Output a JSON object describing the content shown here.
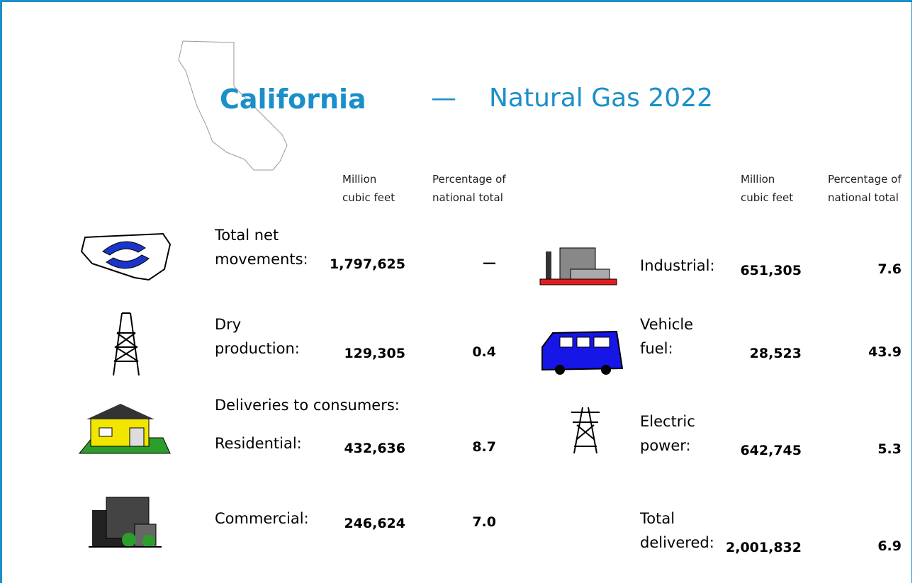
{
  "header": {
    "state": "California",
    "dash": "—",
    "title": "Natural Gas 2022"
  },
  "columns": {
    "left": {
      "volume": [
        "Million",
        "cubic feet"
      ],
      "share": [
        "Percentage of",
        "national total"
      ]
    },
    "right": {
      "volume": [
        "Million",
        "cubic feet"
      ],
      "share": [
        "Percentage of",
        "national total"
      ]
    }
  },
  "left_rows": [
    {
      "label": [
        "Total net",
        "movements:"
      ],
      "volume": "1,797,625",
      "share": "—"
    },
    {
      "label": [
        "Dry",
        "production:"
      ],
      "volume": "129,305",
      "share": "0.4"
    },
    {
      "section": "Deliveries to consumers:"
    },
    {
      "label": [
        "Residential:"
      ],
      "volume": "432,636",
      "share": "8.7"
    },
    {
      "label": [
        "Commercial:"
      ],
      "volume": "246,624",
      "share": "7.0"
    }
  ],
  "right_rows": [
    {
      "label": [
        "Industrial:"
      ],
      "volume": "651,305",
      "share": "7.6"
    },
    {
      "label": [
        "Vehicle",
        "fuel:"
      ],
      "volume": "28,523",
      "share": "43.9"
    },
    {
      "label": [
        "Electric",
        "power:"
      ],
      "volume": "642,745",
      "share": "5.3"
    },
    {
      "label": [
        "Total",
        "delivered:"
      ],
      "volume": "2,001,832",
      "share": "6.9"
    }
  ]
}
